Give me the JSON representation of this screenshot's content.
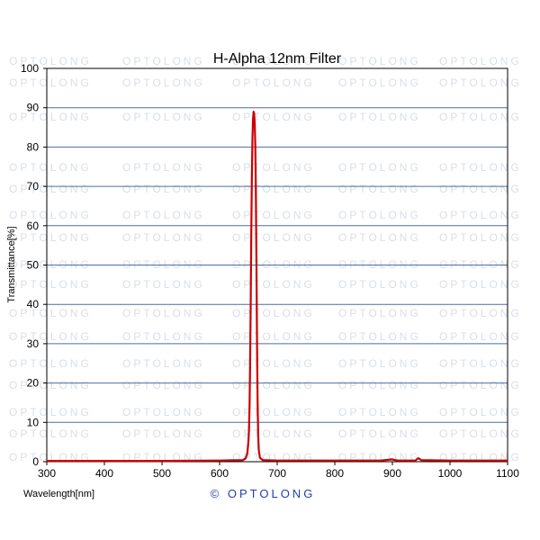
{
  "chart_data": {
    "type": "line",
    "title": "H-Alpha 12nm Filter",
    "xlabel": "Wavelength[nm]",
    "ylabel": "Transmittance[%]",
    "xlim": [
      300,
      1100
    ],
    "ylim": [
      0,
      100
    ],
    "x_ticks": [
      300,
      400,
      500,
      600,
      700,
      800,
      900,
      1000,
      1100
    ],
    "y_ticks": [
      0,
      10,
      20,
      30,
      40,
      50,
      60,
      70,
      80,
      90,
      100
    ],
    "grid": "horizontal",
    "series": [
      {
        "color": "#cc0000",
        "x": [
          300,
          400,
          500,
          600,
          640,
          645,
          648,
          650,
          651,
          652,
          653,
          654,
          655,
          656,
          657,
          658,
          659,
          660,
          661,
          662,
          663,
          664,
          665,
          666,
          667,
          668,
          670,
          675,
          700,
          800,
          880,
          900,
          905,
          910,
          920,
          940,
          945,
          950,
          1000,
          1050,
          1100
        ],
        "y": [
          0.2,
          0.2,
          0.2,
          0.3,
          0.4,
          0.8,
          2.0,
          5.0,
          8.0,
          14.0,
          25.0,
          40.0,
          58.0,
          72.0,
          82.0,
          87.0,
          89.0,
          88.5,
          86.0,
          80.0,
          68.0,
          50.0,
          30.0,
          15.0,
          7.0,
          3.0,
          1.0,
          0.4,
          0.3,
          0.3,
          0.3,
          0.6,
          0.4,
          0.3,
          0.3,
          0.3,
          0.9,
          0.4,
          0.3,
          0.3,
          0.3
        ]
      }
    ]
  },
  "watermark": {
    "text": "OPTOLONG",
    "color": "#d8dfe6"
  },
  "brand": {
    "text": "© OPTOLONG",
    "color": "#1f3fb0"
  },
  "colors": {
    "grid": "#4a6fa5",
    "frame": "#000000",
    "series": "#cc0000"
  }
}
